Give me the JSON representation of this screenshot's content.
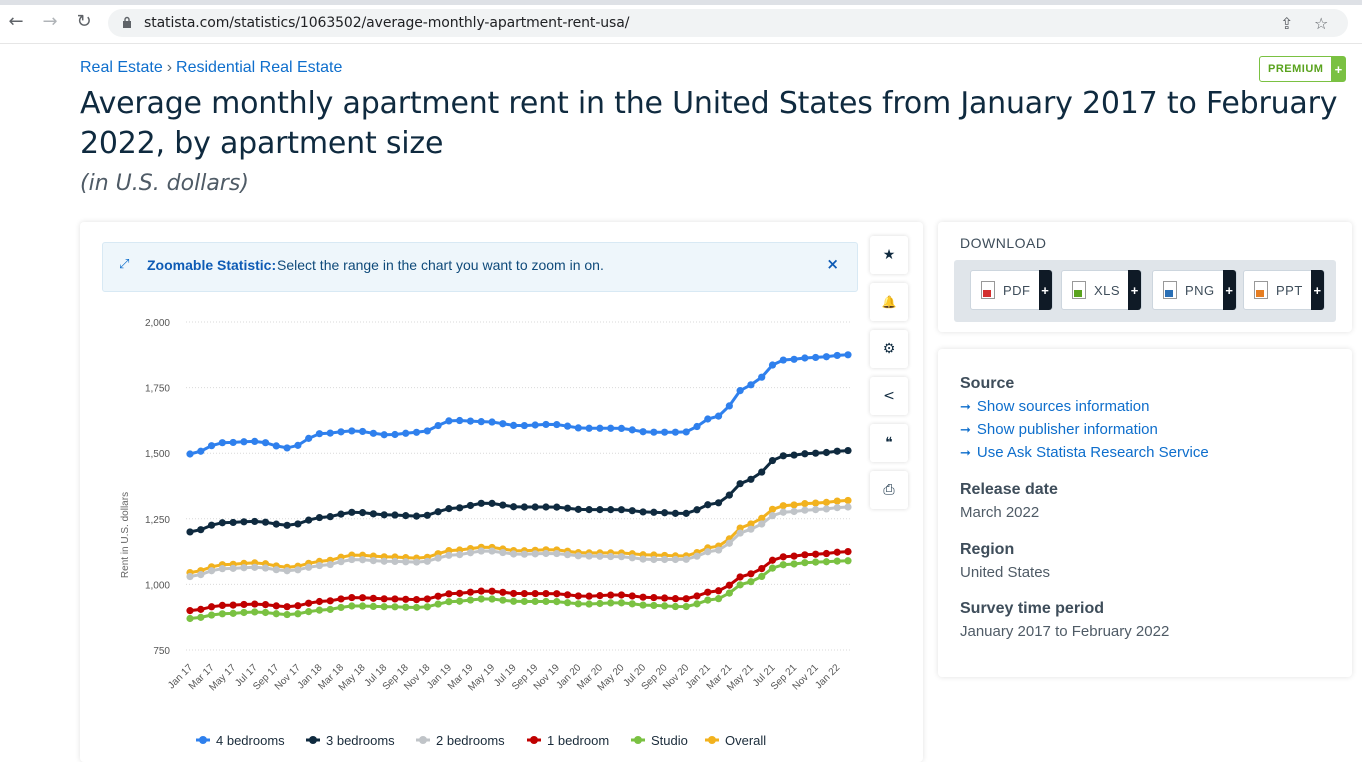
{
  "browser": {
    "url": "statista.com/statistics/1063502/average-monthly-apartment-rent-usa/",
    "back": "←",
    "forward": "→",
    "reload": "↻",
    "share": "⇪",
    "star": "☆"
  },
  "breadcrumb": {
    "items": [
      "Real Estate",
      "Residential Real Estate"
    ],
    "separator": "›"
  },
  "premium": {
    "label": "PREMIUM",
    "plus": "+"
  },
  "title": "Average monthly apartment rent in the United States from January 2017 to February 2022, by apartment size",
  "subtitle": "(in U.S. dollars)",
  "zoom": {
    "label": "Zoomable Statistic:",
    "message": "Select the range in the chart you want to zoom in on.",
    "close": "×"
  },
  "tools": [
    {
      "icon": "star-icon",
      "glyph": "★"
    },
    {
      "icon": "bell-icon",
      "glyph": "🔔"
    },
    {
      "icon": "gear-icon",
      "glyph": "⚙"
    },
    {
      "icon": "share-icon",
      "glyph": "<"
    },
    {
      "icon": "quote-icon",
      "glyph": "❝"
    },
    {
      "icon": "print-icon",
      "glyph": "⎙"
    }
  ],
  "download": {
    "heading": "DOWNLOAD",
    "buttons": [
      {
        "label": "PDF",
        "color": "#d32f2f"
      },
      {
        "label": "XLS",
        "color": "#5aa31e"
      },
      {
        "label": "PNG",
        "color": "#2a6fb5"
      },
      {
        "label": "PPT",
        "color": "#e67e22"
      }
    ],
    "plus": "+"
  },
  "info": {
    "source_heading": "Source",
    "source_links": [
      "Show sources information",
      "Show publisher information",
      "Use Ask Statista Research Service"
    ],
    "release_heading": "Release date",
    "release_value": "March 2022",
    "region_heading": "Region",
    "region_value": "United States",
    "survey_heading": "Survey time period",
    "survey_value": "January 2017 to February 2022"
  },
  "chart_data": {
    "type": "line",
    "ylabel": "Rent in U.S. dollars",
    "ylim": [
      750,
      2000
    ],
    "yticks": [
      750,
      1000,
      1250,
      1500,
      1750,
      2000
    ],
    "ytick_labels": [
      "750",
      "1,000",
      "1,250",
      "1,500",
      "1,750",
      "2,000"
    ],
    "x_tick_labels": [
      "Jan 17",
      "Mar 17",
      "May 17",
      "Jul 17",
      "Sep 17",
      "Nov 17",
      "Jan 18",
      "Mar 18",
      "May 18",
      "Jul 18",
      "Sep 18",
      "Nov 18",
      "Jan 19",
      "Mar 19",
      "May 19",
      "Jul 19",
      "Sep 19",
      "Nov 19",
      "Jan 20",
      "Mar 20",
      "May 20",
      "Jul 20",
      "Sep 20",
      "Nov 20",
      "Jan 21",
      "Mar 21",
      "May 21",
      "Jul 21",
      "Sep 21",
      "Nov 21",
      "Jan 22"
    ],
    "n_points": 62,
    "grid": true,
    "legend_position": "bottom",
    "series": [
      {
        "name": "4 bedrooms",
        "color": "#2f80ed",
        "knots": [
          1497,
          1540,
          1545,
          1520,
          1575,
          1585,
          1570,
          1580,
          1625,
          1620,
          1605,
          1610,
          1595,
          1595,
          1580,
          1580,
          1640,
          1760,
          1855,
          1865,
          1875
        ]
      },
      {
        "name": "3 bedrooms",
        "color": "#0f2a3f",
        "knots": [
          1200,
          1235,
          1240,
          1225,
          1255,
          1275,
          1265,
          1260,
          1290,
          1310,
          1295,
          1295,
          1285,
          1285,
          1275,
          1270,
          1310,
          1400,
          1490,
          1500,
          1510
        ]
      },
      {
        "name": "2 bedrooms",
        "color": "#c0c4c8",
        "knots": [
          1030,
          1060,
          1065,
          1052,
          1072,
          1095,
          1088,
          1085,
          1112,
          1128,
          1115,
          1118,
          1108,
          1106,
          1095,
          1095,
          1130,
          1210,
          1275,
          1285,
          1295
        ]
      },
      {
        "name": "1 bedroom",
        "color": "#c00000",
        "knots": [
          900,
          920,
          925,
          915,
          935,
          950,
          945,
          942,
          965,
          975,
          965,
          965,
          955,
          960,
          950,
          945,
          975,
          1040,
          1105,
          1115,
          1125
        ]
      },
      {
        "name": "Studio",
        "color": "#7ac142",
        "knots": [
          870,
          888,
          895,
          885,
          902,
          918,
          915,
          912,
          935,
          945,
          935,
          935,
          925,
          930,
          920,
          915,
          945,
          1010,
          1075,
          1085,
          1090
        ]
      },
      {
        "name": "Overall",
        "color": "#f2b21e",
        "knots": [
          1045,
          1075,
          1082,
          1065,
          1088,
          1112,
          1105,
          1100,
          1130,
          1142,
          1128,
          1132,
          1120,
          1120,
          1112,
          1108,
          1145,
          1230,
          1300,
          1310,
          1320
        ]
      }
    ]
  }
}
